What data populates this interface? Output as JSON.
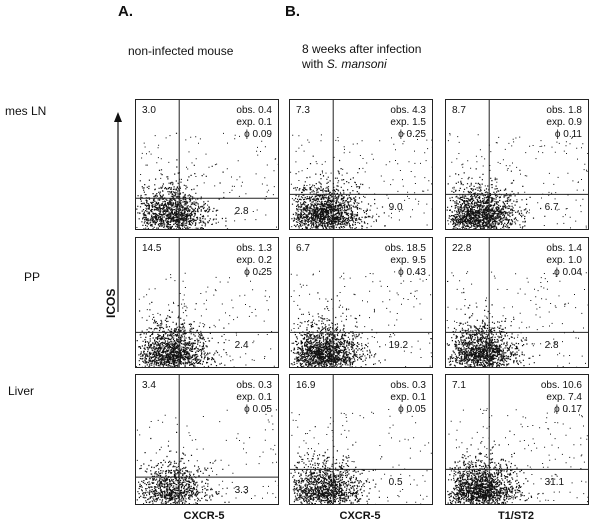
{
  "panels": {
    "A": "A.",
    "B": "B."
  },
  "conditions": {
    "A": "non-infected mouse",
    "B_line1": "8 weeks after infection",
    "B_line2_prefix": "with ",
    "B_line2_species": "S. mansoni"
  },
  "rows": [
    "mes LN",
    "PP",
    "Liver"
  ],
  "y_axis": "ICOS",
  "x_axes": [
    "CXCR-5",
    "CXCR-5",
    "T1/ST2"
  ],
  "plots": [
    [
      {
        "ul": "3.0",
        "lr": "2.8",
        "obs": "obs. 0.4",
        "exp": "exp. 0.1",
        "phi": "ϕ 0.09",
        "vx": 0.3,
        "hy": 0.75,
        "density": 0.8
      },
      {
        "ul": "7.3",
        "lr": "9.0",
        "obs": "obs. 4.3",
        "exp": "exp. 1.5",
        "phi": "ϕ 0.25",
        "vx": 0.3,
        "hy": 0.72,
        "density": 1.0
      },
      {
        "ul": "8.7",
        "lr": "6.7",
        "obs": "obs. 1.8",
        "exp": "exp. 0.9",
        "phi": "ϕ 0.11",
        "vx": 0.3,
        "hy": 0.72,
        "density": 1.0
      }
    ],
    [
      {
        "ul": "14.5",
        "lr": "2.4",
        "obs": "obs. 1.3",
        "exp": "exp. 0.2",
        "phi": "ϕ 0.25",
        "vx": 0.3,
        "hy": 0.72,
        "density": 0.9
      },
      {
        "ul": "6.7",
        "lr": "19.2",
        "obs": "obs. 18.5",
        "exp": "exp. 9.5",
        "phi": "ϕ 0.43",
        "vx": 0.3,
        "hy": 0.72,
        "density": 1.0
      },
      {
        "ul": "22.8",
        "lr": "2.8",
        "obs": "obs. 1.4",
        "exp": "exp. 1.0",
        "phi": "ϕ 0.04",
        "vx": 0.3,
        "hy": 0.72,
        "density": 0.9
      }
    ],
    [
      {
        "ul": "3.4",
        "lr": "3.3",
        "obs": "obs. 0.3",
        "exp": "exp. 0.1",
        "phi": "ϕ 0.05",
        "vx": 0.3,
        "hy": 0.78,
        "density": 0.6
      },
      {
        "ul": "16.9",
        "lr": "0.5",
        "obs": "obs. 0.3",
        "exp": "exp. 0.1",
        "phi": "ϕ 0.05",
        "vx": 0.3,
        "hy": 0.72,
        "density": 0.8
      },
      {
        "ul": "7.1",
        "lr": "31.1",
        "obs": "obs. 10.6",
        "exp": "exp. 7.4",
        "phi": "ϕ 0.17",
        "vx": 0.3,
        "hy": 0.72,
        "density": 1.0
      }
    ]
  ]
}
